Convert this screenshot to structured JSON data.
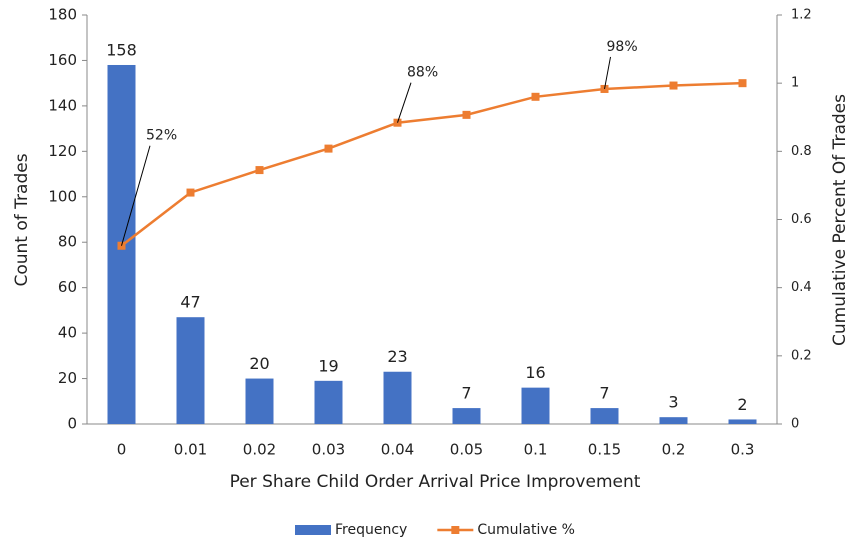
{
  "chart_data": {
    "type": "bar",
    "x_label": "Per Share Child Order Arrival Price Improvement",
    "y_label": "Count of Trades",
    "y2_label": "Cumulative Percent Of Trades",
    "categories": [
      "0",
      "0.01",
      "0.02",
      "0.03",
      "0.04",
      "0.05",
      "0.1",
      "0.15",
      "0.2",
      "0.3"
    ],
    "series": [
      {
        "name": "Frequency",
        "type": "bar",
        "color": "#4472c4",
        "values": [
          158,
          47,
          20,
          19,
          23,
          7,
          16,
          7,
          3,
          2
        ]
      },
      {
        "name": "Cumulative %",
        "type": "line",
        "axis": "y2",
        "color": "#ed7d31",
        "values": [
          0.523,
          0.679,
          0.745,
          0.808,
          0.884,
          0.907,
          0.96,
          0.983,
          0.993,
          1.0
        ],
        "value_labels": [
          "52%",
          null,
          null,
          null,
          "88%",
          null,
          null,
          "98%",
          null,
          null
        ]
      }
    ],
    "ylim": [
      0,
      180
    ],
    "yticks": [
      0,
      20,
      40,
      60,
      80,
      100,
      120,
      140,
      160,
      180
    ],
    "y2lim": [
      0,
      1.2
    ],
    "y2ticks": [
      0,
      0.2,
      0.4,
      0.6,
      0.8,
      1,
      1.2
    ],
    "legend": "bottom"
  }
}
